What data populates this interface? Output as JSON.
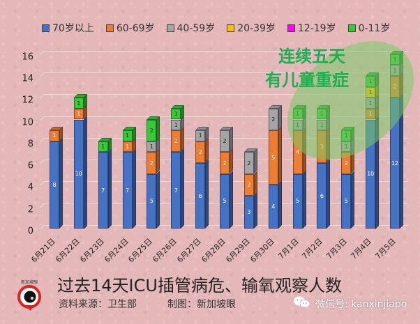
{
  "chart_data": {
    "type": "bar",
    "stacked": true,
    "style": "3d-column",
    "title": "过去14天ICU插管病危、输氧观察人数",
    "xlabel": "",
    "ylabel": "",
    "ylim": [
      0,
      16
    ],
    "yticks": [
      0,
      2,
      4,
      6,
      8,
      10,
      12,
      14,
      16
    ],
    "grid": true,
    "legend_position": "top",
    "categories": [
      "6月21日",
      "6月22日",
      "6月23日",
      "6月24日",
      "6月25日",
      "6月26日",
      "6月27日",
      "6月28日",
      "6月29日",
      "6月30日",
      "7月1日",
      "7月2日",
      "7月3日",
      "7月4日",
      "7月5日"
    ],
    "series": [
      {
        "name": "70岁以上",
        "color": "#4472c4",
        "values": [
          8,
          10,
          7,
          7,
          5,
          7,
          6,
          5,
          3,
          4,
          5,
          6,
          5,
          10,
          12
        ]
      },
      {
        "name": "60-69岁",
        "color": "#ed7d31",
        "values": [
          1,
          1,
          0,
          1,
          2,
          2,
          2,
          2,
          2,
          5,
          4,
          3,
          2,
          1,
          2
        ]
      },
      {
        "name": "40-59岁",
        "color": "#a5a5a5",
        "values": [
          0,
          0,
          0,
          0,
          1,
          1,
          1,
          2,
          2,
          2,
          1,
          1,
          1,
          1,
          1
        ]
      },
      {
        "name": "20-39岁",
        "color": "#ffc000",
        "values": [
          0,
          0,
          0,
          0,
          0,
          0,
          0,
          0,
          0,
          0,
          0,
          0,
          0,
          1,
          0
        ]
      },
      {
        "name": "12-19岁",
        "color": "#ff00ff",
        "values": [
          0,
          0,
          0,
          0,
          0,
          0,
          0,
          0,
          0,
          0,
          0,
          0,
          0,
          0,
          0
        ]
      },
      {
        "name": "0-11岁",
        "color": "#33cc33",
        "values": [
          0,
          1,
          1,
          1,
          2,
          1,
          0,
          0,
          0,
          0,
          1,
          1,
          1,
          1,
          1
        ]
      }
    ],
    "totals": [
      9,
      12,
      8,
      9,
      10,
      11,
      9,
      9,
      7,
      11,
      11,
      11,
      9,
      14,
      16
    ],
    "annotations": [
      {
        "text": "连续五天\n有儿童重症",
        "highlight": "7月1日–7月5日 (green ellipse)"
      }
    ]
  },
  "legend": [
    {
      "label": "70岁以上",
      "color": "#4472c4"
    },
    {
      "label": "60-69岁",
      "color": "#ed7d31"
    },
    {
      "label": "40-59岁",
      "color": "#a5a5a5"
    },
    {
      "label": "20-39岁",
      "color": "#ffc000"
    },
    {
      "label": "12-19岁",
      "color": "#ff00ff"
    },
    {
      "label": "0-11岁",
      "color": "#33cc33"
    }
  ],
  "callout": {
    "line1": "连续五天",
    "line2": "有儿童重症"
  },
  "footer": {
    "title": "过去14天ICU插管病危、输氧观察人数",
    "source": "资料来源：卫生部",
    "made_by": "制图：新加坡眼",
    "wechat": "微信号: kanxinjiapo",
    "logo_text": "新加坡眼"
  }
}
